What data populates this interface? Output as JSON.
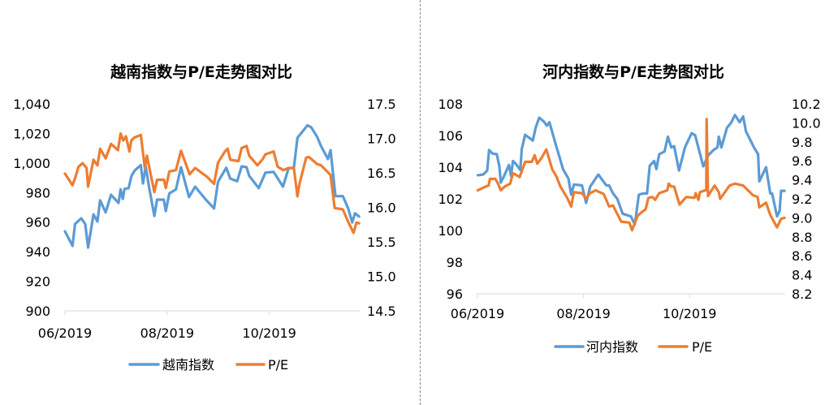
{
  "chart_data": [
    {
      "type": "line",
      "title": "越南指数与P/E走势图对比",
      "x_ticks": [
        {
          "day": 0,
          "label": "06/2019"
        },
        {
          "day": 61,
          "label": "08/2019"
        },
        {
          "day": 122,
          "label": "10/2019"
        }
      ],
      "xlim": [
        0,
        176
      ],
      "y_left": {
        "lim": [
          900,
          1040
        ],
        "ticks": [
          "900",
          "920",
          "940",
          "960",
          "980",
          "1,000",
          "1,020",
          "1,040"
        ]
      },
      "y_right": {
        "lim": [
          14.5,
          17.5
        ],
        "ticks": [
          "14.5",
          "15.0",
          "15.5",
          "16.0",
          "16.5",
          "17.0",
          "17.5"
        ]
      },
      "legend_position": "bottom",
      "series": [
        {
          "name": "越南指数",
          "axis": "left",
          "color": "#5B9BD5",
          "x": [
            0,
            4.5,
            6,
            9.7,
            12.1,
            13.8,
            17,
            19.4,
            21,
            24.3,
            27.5,
            32,
            33.2,
            34.5,
            35.6,
            38,
            39.7,
            41.7,
            45.3,
            46.6,
            48.2,
            50.2,
            53.4,
            55,
            59,
            60.2,
            62.3,
            66.3,
            69.3,
            74.1,
            77.7,
            84.1,
            89,
            91.4,
            96.3,
            98.7,
            102.8,
            105.5,
            108.4,
            110,
            115.7,
            119.7,
            124.6,
            130.2,
            133.5,
            136.7,
            138.8,
            144.8,
            147,
            150.5,
            152.9,
            157,
            158.6,
            161.5,
            165.9,
            169.1,
            171.5,
            173.2,
            175.6
          ],
          "y": [
            953.8,
            944,
            958.7,
            962.6,
            958.7,
            942.8,
            965.3,
            960.5,
            974.8,
            966.6,
            978.5,
            973,
            982.2,
            975.7,
            982.5,
            983,
            991.3,
            995,
            998.6,
            986.2,
            997.7,
            984,
            964.2,
            975.2,
            975.2,
            967.5,
            979.4,
            982.2,
            997.2,
            977,
            984,
            975.2,
            969.3,
            987.3,
            996.8,
            989.5,
            987.7,
            997.7,
            997.2,
            991.3,
            983,
            993.5,
            994,
            984,
            996.4,
            996.8,
            1017,
            1025.5,
            1024.2,
            1017.9,
            1011.4,
            1002.7,
            1008.7,
            977.6,
            977.6,
            969.3,
            959.8,
            966,
            963.8
          ]
        },
        {
          "name": "P/E",
          "axis": "right",
          "color": "#ED7D31",
          "x": [
            0,
            4.5,
            6,
            8.1,
            10.5,
            12.9,
            13.8,
            17,
            19.4,
            21,
            24.3,
            27.5,
            31.6,
            33.2,
            34.8,
            36.4,
            38.5,
            39.6,
            41.3,
            45.3,
            47.7,
            48.9,
            51,
            53.4,
            55,
            59.1,
            60.2,
            62.3,
            66.3,
            69.3,
            74.4,
            77.7,
            85,
            89,
            91.4,
            95.5,
            97.1,
            98.7,
            103.6,
            105.5,
            108.4,
            110,
            114.9,
            118.1,
            119.7,
            124.6,
            127,
            130.3,
            133.5,
            136.7,
            138.8,
            140,
            144,
            145.6,
            150.5,
            152.9,
            158.6,
            161,
            165.9,
            169.1,
            172.3,
            174,
            175.6
          ],
          "y": [
            16.49,
            16.32,
            16.42,
            16.59,
            16.64,
            16.57,
            16.3,
            16.69,
            16.61,
            16.85,
            16.71,
            16.92,
            16.83,
            17.07,
            16.97,
            17.03,
            16.81,
            16.97,
            17.01,
            17.05,
            16.57,
            16.75,
            16.5,
            16.22,
            16.4,
            16.4,
            16.28,
            16.52,
            16.54,
            16.82,
            16.48,
            16.57,
            16.44,
            16.34,
            16.65,
            16.81,
            16.85,
            16.69,
            16.67,
            16.86,
            16.89,
            16.75,
            16.61,
            16.7,
            16.77,
            16.81,
            16.59,
            16.54,
            16.57,
            16.57,
            16.16,
            16.34,
            16.72,
            16.73,
            16.63,
            16.61,
            16.47,
            15.99,
            15.97,
            15.79,
            15.63,
            15.78,
            15.77
          ]
        }
      ]
    },
    {
      "type": "line",
      "title": "河内指数与P/E走势图对比",
      "x_ticks": [
        {
          "day": 0,
          "label": "06/2019"
        },
        {
          "day": 61,
          "label": "08/2019"
        },
        {
          "day": 122,
          "label": "10/2019"
        }
      ],
      "xlim": [
        0,
        177
      ],
      "y_left": {
        "lim": [
          96,
          108
        ],
        "ticks": [
          "96",
          "98",
          "100",
          "102",
          "104",
          "106",
          "108"
        ]
      },
      "y_right": {
        "lim": [
          8.2,
          10.2
        ],
        "ticks": [
          "8.2",
          "8.4",
          "8.6",
          "8.8",
          "9.0",
          "9.2",
          "9.4",
          "9.6",
          "9.8",
          "10.0",
          "10.2"
        ]
      },
      "legend_position": "bottom",
      "series": [
        {
          "name": "河内指数",
          "axis": "left",
          "color": "#5B9BD5",
          "x": [
            0.2,
            3.3,
            5.6,
            6.7,
            8.7,
            11.1,
            12.6,
            13.4,
            15,
            18.1,
            19.3,
            20.4,
            22,
            24.6,
            25.5,
            27.4,
            31.8,
            33.6,
            35.5,
            38.3,
            39.9,
            41.4,
            45.3,
            47.4,
            49.2,
            52.3,
            53.9,
            55.5,
            60.1,
            62.5,
            64.8,
            69.5,
            74.1,
            75.7,
            78,
            80.4,
            83.5,
            88.2,
            90.5,
            92.8,
            95.2,
            97.5,
            99.1,
            101.6,
            102.9,
            104.5,
            107.6,
            109.5,
            111.5,
            113.1,
            115.9,
            119.3,
            123.2,
            125.2,
            129.9,
            132.6,
            135.7,
            138,
            138.8,
            140.3,
            143.5,
            145.8,
            148.1,
            150.8,
            152.8,
            154.4,
            159,
            161.4,
            162.1,
            166,
            168.4,
            169.5,
            172.3,
            173.8,
            174.6,
            176.6
          ],
          "y": [
            103.49,
            103.54,
            103.79,
            105.08,
            104.86,
            104.82,
            104.05,
            103.03,
            103.37,
            104.14,
            103.45,
            104.39,
            104.22,
            103.83,
            105.16,
            106.05,
            105.68,
            106.53,
            107.13,
            106.87,
            106.62,
            106.84,
            105.33,
            104.56,
            103.88,
            103.28,
            102.26,
            102.91,
            102.85,
            101.74,
            102.77,
            103.54,
            102.85,
            102.85,
            102.34,
            102,
            101.06,
            100.89,
            100.38,
            102.26,
            102.34,
            102.34,
            104.1,
            104.39,
            103.88,
            104.82,
            104.99,
            105.93,
            105.25,
            105.33,
            103.79,
            105.25,
            106.15,
            106.02,
            104.05,
            104.73,
            105.08,
            105.25,
            105.93,
            105.25,
            106.5,
            106.79,
            107.3,
            106.84,
            107.21,
            106.27,
            105.25,
            104.82,
            103.11,
            104,
            102.34,
            102.34,
            100.89,
            101.23,
            102.51,
            102.51
          ]
        },
        {
          "name": "P/E",
          "axis": "right",
          "color": "#ED7D31",
          "x": [
            0.2,
            2.5,
            4.8,
            6.4,
            7.2,
            10.3,
            11.8,
            13.4,
            15.7,
            18.8,
            20.4,
            24.3,
            27.4,
            31.3,
            32.9,
            34.4,
            36.8,
            39.6,
            43,
            45.3,
            47.7,
            51.6,
            53.9,
            55.5,
            60.1,
            62.5,
            64.8,
            67.9,
            72.6,
            75.7,
            78,
            79.6,
            82.7,
            87.4,
            88.9,
            92.1,
            94.4,
            96.7,
            98.3,
            100.6,
            102.2,
            104.5,
            109.2,
            110,
            111.5,
            113.1,
            116.2,
            120.1,
            124.8,
            125.5,
            127.1,
            127.9,
            131,
            131.6,
            131.8,
            132.6,
            136.4,
            138.8,
            139.6,
            145,
            148.1,
            152.8,
            158.3,
            161.1,
            162.1,
            166,
            168.4,
            172.3,
            174.6,
            176.6
          ],
          "y": [
            9.29,
            9.31,
            9.33,
            9.34,
            9.41,
            9.41,
            9.36,
            9.29,
            9.33,
            9.36,
            9.47,
            9.43,
            9.59,
            9.59,
            9.66,
            9.57,
            9.63,
            9.72,
            9.51,
            9.44,
            9.33,
            9.21,
            9.12,
            9.27,
            9.26,
            9.2,
            9.26,
            9.29,
            9.25,
            9.12,
            9.13,
            9.07,
            8.96,
            8.95,
            8.87,
            9.02,
            9.06,
            9.09,
            9.21,
            9.22,
            9.19,
            9.26,
            9.29,
            9.36,
            9.33,
            9.33,
            9.14,
            9.22,
            9.21,
            9.26,
            9.19,
            9.27,
            9.29,
            9.29,
            10.04,
            9.23,
            9.34,
            9.27,
            9.2,
            9.34,
            9.36,
            9.34,
            9.24,
            9.22,
            9.11,
            9.16,
            9.03,
            8.9,
            8.99,
            9.0
          ]
        }
      ]
    }
  ]
}
